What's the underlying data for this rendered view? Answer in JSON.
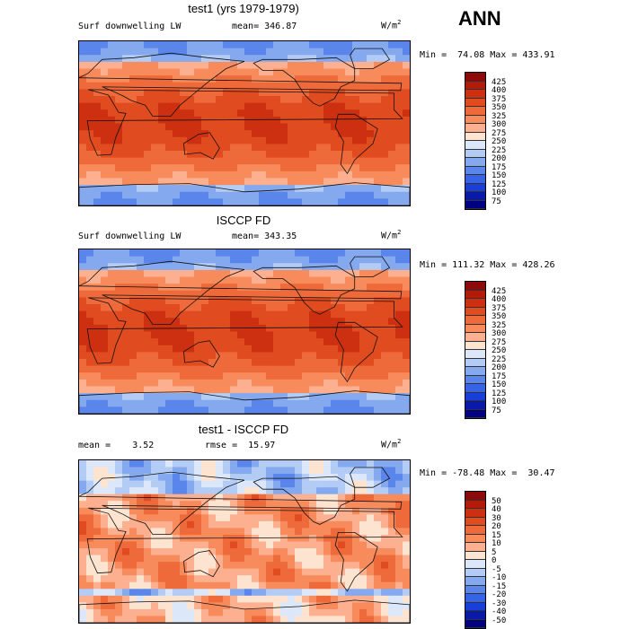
{
  "season": "ANN",
  "panels": [
    {
      "title": "test1 (yrs 1979-1979)",
      "variable": "Surf downwelling LW",
      "stat1": "mean= 346.87",
      "stat2": "",
      "units_base": "W/m",
      "units_sup": "2",
      "minmax": "Min =  74.08 Max = 433.91",
      "palette": "abs",
      "levels": [
        "425",
        "400",
        "375",
        "350",
        "325",
        "300",
        "275",
        "250",
        "225",
        "200",
        "175",
        "150",
        "125",
        "100",
        "75"
      ]
    },
    {
      "title": "ISCCP FD",
      "variable": "Surf downwelling LW",
      "stat1": "mean= 343.35",
      "stat2": "",
      "units_base": "W/m",
      "units_sup": "2",
      "minmax": "Min = 111.32 Max = 428.26",
      "palette": "abs",
      "levels": [
        "425",
        "400",
        "375",
        "350",
        "325",
        "300",
        "275",
        "250",
        "225",
        "200",
        "175",
        "150",
        "125",
        "100",
        "75"
      ]
    },
    {
      "title": "test1 - ISCCP FD",
      "variable": "",
      "stat1": "mean =    3.52",
      "stat2": "rmse =  15.97",
      "units_base": "W/m",
      "units_sup": "2",
      "minmax": "Min = -78.48 Max =  30.47",
      "palette": "diff",
      "levels": [
        "50",
        "40",
        "30",
        "20",
        "15",
        "10",
        "5",
        "0",
        "-5",
        "-10",
        "-15",
        "-20",
        "-30",
        "-40",
        "-50"
      ]
    }
  ],
  "colors": {
    "abs": [
      "#8c0a0a",
      "#b21a0a",
      "#cc3010",
      "#e04b1f",
      "#ef6a3a",
      "#f88b5c",
      "#fdb090",
      "#fde4d0",
      "#dce8fa",
      "#b3ccf5",
      "#85a9ef",
      "#5a85ea",
      "#3764e6",
      "#1840d8",
      "#0a1aa8",
      "#000080"
    ],
    "diff": [
      "#8c0a0a",
      "#b21a0a",
      "#cc3010",
      "#e04b1f",
      "#ef6a3a",
      "#f88b5c",
      "#fdb090",
      "#fde4d0",
      "#dce8fa",
      "#b3ccf5",
      "#85a9ef",
      "#5a85ea",
      "#3764e6",
      "#1840d8",
      "#0a1aa8",
      "#000080"
    ]
  }
}
